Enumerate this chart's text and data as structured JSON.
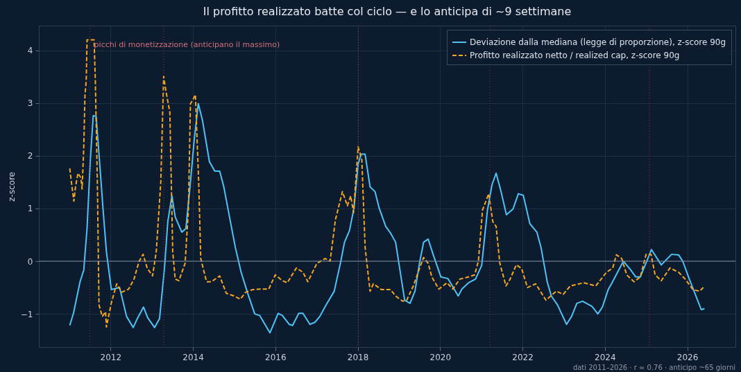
{
  "chart_data": {
    "type": "line",
    "title": "Il profitto realizzato batte col ciclo — e lo anticipa di ~9 settimane",
    "ylabel": "z-score",
    "xlim": [
      2010.26,
      2027.17
    ],
    "xticks": [
      2012,
      2014,
      2016,
      2018,
      2020,
      2022,
      2024,
      2026
    ],
    "ylim": [
      -1.63,
      4.47
    ],
    "yticks": [
      -1,
      0,
      1,
      2,
      3,
      4
    ],
    "grid": true,
    "legend": "top right",
    "annotations": [
      "picchi di monetizzazione (anticipano il massimo)",
      "dati 2011–2026 · r ≈ 0.76 · anticipo ~65 giorni"
    ],
    "ref_lines": [
      {
        "axis": "x",
        "value": 2011.5,
        "color": "#8b3346",
        "line_style": "dotted"
      },
      {
        "axis": "x",
        "value": 2013.29,
        "color": "#8b3346",
        "line_style": "dotted"
      },
      {
        "axis": "x",
        "value": 2018.01,
        "color": "#8b3346",
        "line_style": "dotted"
      },
      {
        "axis": "x",
        "value": 2021.21,
        "color": "#8b3346",
        "line_style": "dotted"
      },
      {
        "axis": "x",
        "value": 2025.08,
        "color": "#8b3346",
        "line_style": "dotted"
      },
      {
        "axis": "y",
        "value": 0,
        "color": "#7f8c9e",
        "line_style": "solid"
      }
    ],
    "series": [
      {
        "name": "Deviazione dalla mediana (legge di proporzione), z-score 90g",
        "color": "#4fc3f7",
        "line_style": "solid",
        "x": [
          2011.01,
          2011.1,
          2011.26,
          2011.35,
          2011.43,
          2011.51,
          2011.58,
          2011.65,
          2011.73,
          2011.82,
          2011.9,
          2012.02,
          2012.22,
          2012.39,
          2012.55,
          2012.65,
          2012.8,
          2012.9,
          2013.07,
          2013.19,
          2013.31,
          2013.39,
          2013.49,
          2013.57,
          2013.73,
          2013.83,
          2013.94,
          2014.03,
          2014.13,
          2014.23,
          2014.4,
          2014.53,
          2014.65,
          2014.75,
          2014.9,
          2015.03,
          2015.17,
          2015.33,
          2015.5,
          2015.62,
          2015.87,
          2016.07,
          2016.17,
          2016.34,
          2016.42,
          2016.57,
          2016.67,
          2016.84,
          2016.96,
          2017.08,
          2017.21,
          2017.43,
          2017.58,
          2017.68,
          2017.8,
          2017.91,
          2018.01,
          2018.08,
          2018.18,
          2018.3,
          2018.42,
          2018.52,
          2018.68,
          2018.8,
          2018.92,
          2019.14,
          2019.27,
          2019.39,
          2019.5,
          2019.6,
          2019.71,
          2019.83,
          2020.02,
          2020.19,
          2020.44,
          2020.53,
          2020.69,
          2020.86,
          2021.01,
          2021.15,
          2021.26,
          2021.36,
          2021.48,
          2021.61,
          2021.77,
          2021.9,
          2022.02,
          2022.18,
          2022.35,
          2022.45,
          2022.6,
          2022.7,
          2022.85,
          2023.07,
          2023.19,
          2023.32,
          2023.46,
          2023.69,
          2023.83,
          2023.94,
          2024.08,
          2024.16,
          2024.45,
          2024.63,
          2024.75,
          2024.86,
          2025.13,
          2025.37,
          2025.62,
          2025.79,
          2025.89,
          2026.05,
          2026.34,
          2026.42
        ],
        "values": [
          -1.22,
          -0.99,
          -0.39,
          -0.17,
          0.62,
          1.93,
          2.76,
          2.75,
          1.93,
          0.97,
          0.18,
          -0.54,
          -0.5,
          -1.05,
          -1.26,
          -1.09,
          -0.87,
          -1.07,
          -1.26,
          -1.09,
          -0.13,
          0.75,
          1.24,
          0.84,
          0.55,
          0.62,
          1.5,
          2.29,
          2.99,
          2.68,
          1.89,
          1.71,
          1.71,
          1.41,
          0.79,
          0.26,
          -0.21,
          -0.61,
          -1.0,
          -1.03,
          -1.36,
          -0.99,
          -1.03,
          -1.2,
          -1.22,
          -0.99,
          -0.99,
          -1.2,
          -1.16,
          -1.05,
          -0.86,
          -0.57,
          -0.04,
          0.36,
          0.58,
          1.01,
          1.84,
          2.03,
          2.03,
          1.41,
          1.32,
          1.01,
          0.66,
          0.53,
          0.36,
          -0.74,
          -0.8,
          -0.57,
          -0.04,
          0.36,
          0.42,
          0.13,
          -0.3,
          -0.33,
          -0.66,
          -0.53,
          -0.41,
          -0.34,
          -0.08,
          0.97,
          1.45,
          1.67,
          1.32,
          0.88,
          0.99,
          1.28,
          1.25,
          0.71,
          0.55,
          0.26,
          -0.39,
          -0.66,
          -0.83,
          -1.2,
          -1.05,
          -0.8,
          -0.76,
          -0.86,
          -1.0,
          -0.87,
          -0.54,
          -0.43,
          0,
          -0.17,
          -0.3,
          -0.3,
          0.22,
          -0.07,
          0.13,
          0.12,
          0,
          -0.34,
          -0.92,
          -0.9
        ]
      },
      {
        "name": "Profitto realizzato netto / realized cap, z-score 90g",
        "color": "#f5a623",
        "line_style": "dashed",
        "x": [
          2011.01,
          2011.05,
          2011.11,
          2011.15,
          2011.21,
          2011.28,
          2011.31,
          2011.35,
          2011.38,
          2011.41,
          2011.43,
          2011.6,
          2011.63,
          2011.68,
          2011.72,
          2011.8,
          2011.88,
          2011.9,
          2012.02,
          2012.15,
          2012.27,
          2012.44,
          2012.57,
          2012.69,
          2012.79,
          2012.89,
          2013.02,
          2013.11,
          2013.22,
          2013.29,
          2013.32,
          2013.44,
          2013.51,
          2013.57,
          2013.66,
          2013.81,
          2013.89,
          2013.94,
          2013.99,
          2014.06,
          2014.14,
          2014.19,
          2014.33,
          2014.45,
          2014.65,
          2014.81,
          2015.0,
          2015.15,
          2015.28,
          2015.45,
          2015.62,
          2015.84,
          2016.0,
          2016.17,
          2016.29,
          2016.51,
          2016.67,
          2016.79,
          2017.01,
          2017.21,
          2017.33,
          2017.46,
          2017.63,
          2017.75,
          2017.83,
          2017.9,
          2018.01,
          2018.1,
          2018.18,
          2018.3,
          2018.38,
          2018.58,
          2018.8,
          2018.92,
          2019.09,
          2019.19,
          2019.35,
          2019.5,
          2019.6,
          2019.71,
          2019.8,
          2019.97,
          2020.17,
          2020.31,
          2020.48,
          2020.69,
          2020.84,
          2020.93,
          2021.03,
          2021.18,
          2021.28,
          2021.36,
          2021.45,
          2021.6,
          2021.7,
          2021.85,
          2021.98,
          2022.12,
          2022.32,
          2022.57,
          2022.82,
          2022.99,
          2023.16,
          2023.49,
          2023.78,
          2024.04,
          2024.19,
          2024.28,
          2024.41,
          2024.53,
          2024.71,
          2024.86,
          2025.0,
          2025.12,
          2025.22,
          2025.37,
          2025.58,
          2025.79,
          2025.95,
          2026.14,
          2026.3,
          2026.39
        ],
        "values": [
          1.76,
          1.5,
          1.14,
          1.41,
          1.67,
          1.58,
          1.37,
          2.16,
          3.16,
          3.42,
          4.2,
          4.2,
          3.47,
          1.5,
          -0.83,
          -1.05,
          -0.96,
          -1.25,
          -0.79,
          -0.43,
          -0.59,
          -0.53,
          -0.34,
          -0.01,
          0.13,
          -0.13,
          -0.28,
          0.18,
          1.5,
          3.51,
          3.34,
          2.82,
          0.18,
          -0.34,
          -0.37,
          -0.04,
          0.97,
          2.99,
          3.05,
          3.16,
          1.5,
          0.05,
          -0.39,
          -0.39,
          -0.28,
          -0.61,
          -0.66,
          -0.72,
          -0.59,
          -0.54,
          -0.53,
          -0.53,
          -0.26,
          -0.37,
          -0.41,
          -0.13,
          -0.21,
          -0.39,
          -0.04,
          0.05,
          0,
          0.79,
          1.32,
          1.05,
          1.24,
          0.92,
          2.17,
          1.93,
          0.26,
          -0.57,
          -0.43,
          -0.54,
          -0.54,
          -0.66,
          -0.76,
          -0.74,
          -0.47,
          -0.14,
          0.07,
          -0.04,
          -0.3,
          -0.53,
          -0.41,
          -0.53,
          -0.34,
          -0.3,
          -0.26,
          0,
          0.97,
          1.28,
          0.75,
          0.66,
          -0.04,
          -0.47,
          -0.34,
          -0.07,
          -0.14,
          -0.5,
          -0.43,
          -0.74,
          -0.57,
          -0.63,
          -0.47,
          -0.41,
          -0.47,
          -0.21,
          -0.13,
          0.12,
          0.05,
          -0.26,
          -0.39,
          -0.3,
          0.13,
          0.13,
          -0.26,
          -0.37,
          -0.13,
          -0.21,
          -0.34,
          -0.54,
          -0.57,
          -0.5
        ]
      }
    ]
  }
}
